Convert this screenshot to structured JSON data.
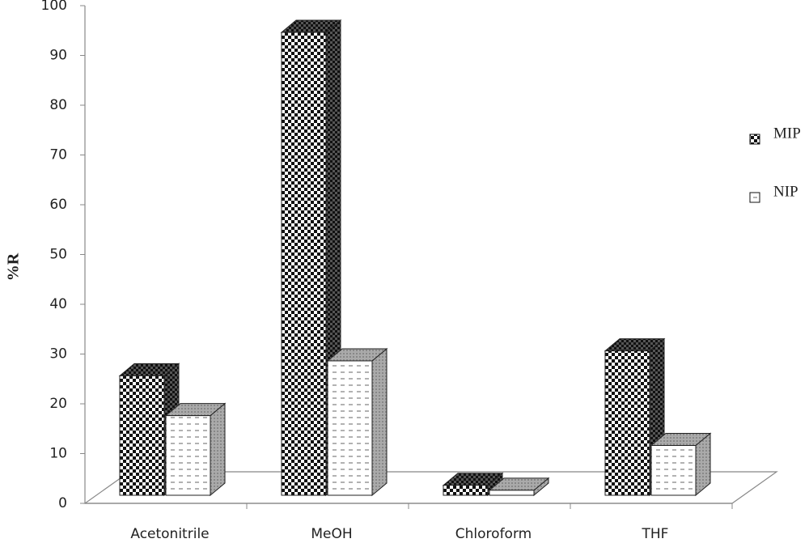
{
  "chart_data": {
    "type": "bar3d",
    "y_label": "%R",
    "categories": [
      "Acetonitrile",
      "MeOH",
      "Chloroform",
      "THF"
    ],
    "series": [
      {
        "name": "MIP",
        "values": [
          24,
          93,
          2,
          29
        ]
      },
      {
        "name": "NIP",
        "values": [
          16,
          27,
          1,
          10
        ]
      }
    ],
    "ylim": [
      0,
      100
    ],
    "yticks": [
      0,
      10,
      20,
      30,
      40,
      50,
      60,
      70,
      80,
      90,
      100
    ]
  }
}
